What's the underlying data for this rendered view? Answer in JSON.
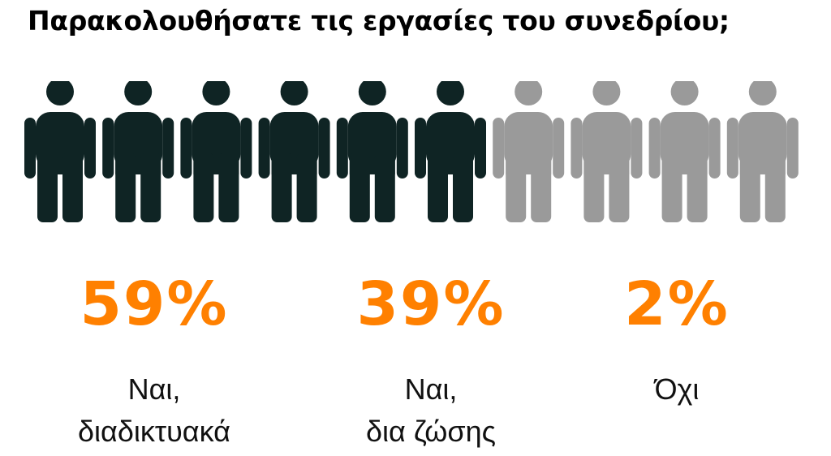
{
  "title": "Παρακολουθήσατε τις εργασίες του συνεδρίου;",
  "colors": {
    "filled": "#0f2424",
    "empty": "#9a9a9a",
    "accent": "#ff8000"
  },
  "icons": {
    "total": 10,
    "filled": 6,
    "icon": "person-icon"
  },
  "chart_data": {
    "type": "pictograph",
    "title": "Παρακολουθήσατε τις εργασίες του συνεδρίου;",
    "categories": [
      "Ναι, διαδικτυακά",
      "Ναι, δια ζώσης",
      "Όχι"
    ],
    "values": [
      59,
      39,
      2
    ],
    "unit": "%",
    "stats": [
      {
        "value": "59%",
        "line1": "Ναι,",
        "line2": "διαδικτυακά"
      },
      {
        "value": "39%",
        "line1": "Ναι,",
        "line2": "δια ζώσης"
      },
      {
        "value": "2%",
        "line1": "Όχι",
        "line2": ""
      }
    ]
  }
}
